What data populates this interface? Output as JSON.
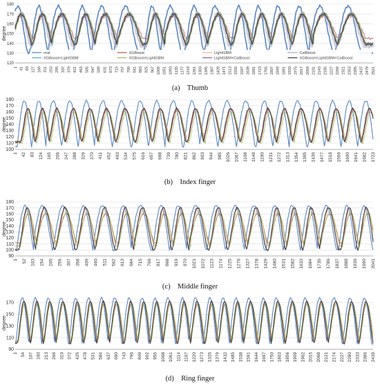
{
  "figure": {
    "captions": [
      "(a)    Thumb",
      "(b)    Index finger",
      "(c)    Middle finger",
      "(d)    Ring finger"
    ]
  },
  "colors": {
    "real": "#4f81bd",
    "XGBoost": "#c0504d",
    "LightGBM": "#f4b183",
    "CatBoost": "#a9a9c9",
    "XGBoost+LightGBM": "#4bacc6",
    "XGBoost+LightGBM_b": "#9bbb59",
    "LightGBM+CatBoost": "#7f6084",
    "XGBoost+LightGBM+CatBoost": "#3a3a3a"
  },
  "chart_data": [
    {
      "type": "line",
      "panel": "thumb",
      "ylabel": "degree",
      "ylim": [
        120,
        180
      ],
      "yticks": [
        120,
        130,
        140,
        150,
        160,
        170,
        180
      ],
      "x_tick_labels": [
        "1",
        "41",
        "83",
        "127",
        "169",
        "211",
        "253",
        "295",
        "337",
        "379",
        "421",
        "463",
        "505",
        "547",
        "589",
        "631",
        "673",
        "715",
        "757",
        "799",
        "841",
        "883",
        "925",
        "967",
        "1009",
        "1051",
        "1093",
        "1135",
        "1177",
        "1219",
        "1261",
        "1303",
        "1345",
        "1387",
        "1429",
        "1471",
        "1513",
        "1555",
        "1597",
        "1639",
        "1681",
        "1723",
        "1765",
        "1807",
        "1849",
        "1891",
        "1933",
        "1975",
        "2017",
        "2059",
        "2101",
        "2143",
        "2185",
        "2227",
        "2269",
        "2311",
        "2353",
        "2395",
        "2437",
        "2479",
        "2521"
      ],
      "xlim": [
        1,
        2560
      ],
      "cycle_centers": [
        40,
        190,
        330,
        500,
        640,
        810,
        1000,
        1130,
        1300,
        1450,
        1620,
        1760,
        1900,
        2050,
        2200,
        2400
      ],
      "series": [
        {
          "name": "real",
          "color_key": "real",
          "width": 1.6,
          "peak": 178,
          "trough": 130,
          "sharp": 1.6,
          "phase": -20
        },
        {
          "name": "XGBoost",
          "color_key": "XGBoost",
          "width": 0.8,
          "peak": 168,
          "trough": 145,
          "sharp": 1.2,
          "phase": 10
        },
        {
          "name": "LightGBM",
          "color_key": "LightGBM",
          "width": 0.8,
          "peak": 172,
          "trough": 138,
          "sharp": 1.2,
          "phase": 5
        },
        {
          "name": "CatBoost",
          "color_key": "CatBoost",
          "width": 3.2,
          "peak": 170,
          "trough": 137,
          "sharp": 1.5,
          "phase": 0
        },
        {
          "name": "XGBoost+LightGBM",
          "color_key": "XGBoost+LightGBM",
          "width": 0.8,
          "peak": 171,
          "trough": 139,
          "sharp": 1.3,
          "phase": 8
        },
        {
          "name": "XGBoost+LightGBM",
          "color_key": "XGBoost+LightGBM_b",
          "width": 0.8,
          "peak": 170,
          "trough": 140,
          "sharp": 1.3,
          "phase": 12
        },
        {
          "name": "LightGBM+CatBoost",
          "color_key": "LightGBM+CatBoost",
          "width": 0.9,
          "peak": 169,
          "trough": 140,
          "sharp": 1.3,
          "phase": 6
        },
        {
          "name": "XGBoost+LightGBM+CatBoost",
          "color_key": "XGBoost+LightGBM+CatBoost",
          "width": 1.0,
          "peak": 170,
          "trough": 139,
          "sharp": 1.3,
          "phase": 4
        }
      ],
      "legend": {
        "placement": "bottom-inside",
        "entries": [
          {
            "label": "real",
            "color_key": "real"
          },
          {
            "label": "XGBoost",
            "color_key": "XGBoost"
          },
          {
            "label": "LightGBM",
            "color_key": "LightGBM"
          },
          {
            "label": "CatBoost",
            "color_key": "CatBoost"
          },
          {
            "label": "XGBoost+LightGBM",
            "color_key": "XGBoost+LightGBM"
          },
          {
            "label": "XGBoost+LightGBM",
            "color_key": "XGBoost+LightGBM_b"
          },
          {
            "label": "LightGBM+CatBoost",
            "color_key": "LightGBM+CatBoost"
          },
          {
            "label": "XGBoost+LightGBM+CatBoost",
            "color_key": "XGBoost+LightGBM+CatBoost"
          }
        ]
      }
    },
    {
      "type": "line",
      "panel": "index",
      "ylabel": "degree",
      "ylim": [
        100,
        180
      ],
      "yticks": [
        100,
        110,
        120,
        130,
        140,
        150,
        160,
        170,
        180
      ],
      "x_tick_labels": [
        "1",
        "42",
        "83",
        "124",
        "165",
        "206",
        "247",
        "288",
        "329",
        "370",
        "411",
        "452",
        "493",
        "534",
        "575",
        "616",
        "657",
        "698",
        "739",
        "780",
        "821",
        "862",
        "903",
        "944",
        "985",
        "1026",
        "1067",
        "1108",
        "1149",
        "1190",
        "1231",
        "1272",
        "1313",
        "1354",
        "1395",
        "1436",
        "1477",
        "1518",
        "1559",
        "1600",
        "1641",
        "1682",
        "1723"
      ],
      "xlim": [
        1,
        1730
      ],
      "cycle_centers": [
        60,
        130,
        200,
        280,
        360,
        440,
        530,
        620,
        700,
        780,
        870,
        950,
        1040,
        1130,
        1220,
        1300,
        1380,
        1470,
        1550,
        1630,
        1710
      ],
      "series": [
        {
          "name": "real",
          "color_key": "real",
          "width": 1.1,
          "peak": 178,
          "trough": 104,
          "sharp": 1.1,
          "phase": -15
        },
        {
          "name": "XGBoost",
          "color_key": "XGBoost",
          "width": 0.8,
          "peak": 163,
          "trough": 113,
          "sharp": 1.3,
          "phase": 6
        },
        {
          "name": "LightGBM",
          "color_key": "LightGBM",
          "width": 0.8,
          "peak": 162,
          "trough": 114,
          "sharp": 1.3,
          "phase": 4
        },
        {
          "name": "XGBoost+LightGBM",
          "color_key": "XGBoost+LightGBM_b",
          "width": 0.8,
          "peak": 160,
          "trough": 110,
          "sharp": 1.3,
          "phase": 10
        },
        {
          "name": "LightGBM+CatBoost",
          "color_key": "LightGBM+CatBoost",
          "width": 0.9,
          "peak": 165,
          "trough": 112,
          "sharp": 1.4,
          "phase": 3
        },
        {
          "name": "XGBoost+LightGBM+CatBoost",
          "color_key": "XGBoost+LightGBM+CatBoost",
          "width": 1.0,
          "peak": 166,
          "trough": 112,
          "sharp": 1.4,
          "phase": 2
        }
      ]
    },
    {
      "type": "line",
      "panel": "middle",
      "ylabel": "degree",
      "ylim": [
        90,
        180
      ],
      "yticks": [
        90,
        100,
        110,
        120,
        130,
        140,
        150,
        160,
        170,
        180
      ],
      "x_tick_labels": [
        "1",
        "52",
        "103",
        "154",
        "205",
        "256",
        "307",
        "358",
        "409",
        "460",
        "511",
        "562",
        "613",
        "664",
        "715",
        "766",
        "817",
        "868",
        "919",
        "970",
        "1021",
        "1072",
        "1123",
        "1174",
        "1225",
        "1276",
        "1327",
        "1378",
        "1429",
        "1480",
        "1531",
        "1582",
        "1633",
        "1684",
        "1735",
        "1786",
        "1837",
        "1888",
        "1939",
        "1990",
        "2041"
      ],
      "xlim": [
        1,
        2080
      ],
      "cycle_centers": [
        70,
        170,
        290,
        410,
        520,
        640,
        740,
        860,
        960,
        1060,
        1180,
        1290,
        1400,
        1520,
        1620,
        1720,
        1820,
        1940,
        2040
      ],
      "series": [
        {
          "name": "real",
          "color_key": "real",
          "width": 1.1,
          "peak": 174,
          "trough": 100,
          "sharp": 1.2,
          "phase": -12
        },
        {
          "name": "XGBoost",
          "color_key": "XGBoost",
          "width": 0.8,
          "peak": 160,
          "trough": 112,
          "sharp": 1.3,
          "phase": 8
        },
        {
          "name": "LightGBM",
          "color_key": "LightGBM",
          "width": 0.8,
          "peak": 166,
          "trough": 108,
          "sharp": 1.3,
          "phase": 5
        },
        {
          "name": "XGBoost+LightGBM",
          "color_key": "XGBoost+LightGBM_b",
          "width": 0.8,
          "peak": 163,
          "trough": 106,
          "sharp": 1.3,
          "phase": 10
        },
        {
          "name": "LightGBM+CatBoost",
          "color_key": "LightGBM+CatBoost",
          "width": 0.9,
          "peak": 170,
          "trough": 101,
          "sharp": 1.5,
          "phase": 2
        },
        {
          "name": "XGBoost+LightGBM+CatBoost",
          "color_key": "XGBoost+LightGBM+CatBoost",
          "width": 1.0,
          "peak": 171,
          "trough": 100,
          "sharp": 1.5,
          "phase": 1
        }
      ]
    },
    {
      "type": "line",
      "panel": "ring",
      "ylabel": "degree",
      "ylim": [
        90,
        180
      ],
      "yticks": [
        90,
        110,
        130,
        150,
        170
      ],
      "x_tick_labels": [
        "1",
        "54",
        "107",
        "160",
        "213",
        "266",
        "319",
        "372",
        "425",
        "478",
        "531",
        "584",
        "637",
        "690",
        "743",
        "796",
        "849",
        "902",
        "955",
        "1008",
        "1061",
        "1114",
        "1167",
        "1220",
        "1273",
        "1326",
        "1379",
        "1432",
        "1485",
        "1538",
        "1591",
        "1644",
        "1697",
        "1750",
        "1803",
        "1856",
        "1909",
        "1962",
        "2015",
        "2068",
        "2121",
        "2174",
        "2227",
        "2280",
        "2333",
        "2386",
        "2439"
      ],
      "xlim": [
        1,
        2480
      ],
      "cycle_centers": [
        60,
        150,
        240,
        330,
        430,
        520,
        610,
        700,
        800,
        890,
        980,
        1070,
        1170,
        1260,
        1360,
        1450,
        1540,
        1630,
        1730,
        1820,
        1920,
        2020,
        2120,
        2220,
        2330,
        2430
      ],
      "series": [
        {
          "name": "real",
          "color_key": "real",
          "width": 1.1,
          "peak": 178,
          "trough": 100,
          "sharp": 1.1,
          "phase": -10
        },
        {
          "name": "XGBoost",
          "color_key": "XGBoost",
          "width": 0.8,
          "peak": 168,
          "trough": 103,
          "sharp": 1.3,
          "phase": 5
        },
        {
          "name": "LightGBM",
          "color_key": "LightGBM",
          "width": 0.8,
          "peak": 170,
          "trough": 104,
          "sharp": 1.3,
          "phase": 4
        },
        {
          "name": "XGBoost+LightGBM",
          "color_key": "XGBoost+LightGBM_b",
          "width": 0.8,
          "peak": 169,
          "trough": 105,
          "sharp": 1.3,
          "phase": 8
        },
        {
          "name": "LightGBM+CatBoost",
          "color_key": "LightGBM+CatBoost",
          "width": 0.9,
          "peak": 172,
          "trough": 101,
          "sharp": 1.4,
          "phase": 2
        },
        {
          "name": "XGBoost+LightGBM+CatBoost",
          "color_key": "XGBoost+LightGBM+CatBoost",
          "width": 1.0,
          "peak": 172,
          "trough": 100,
          "sharp": 1.4,
          "phase": 1
        }
      ]
    }
  ]
}
